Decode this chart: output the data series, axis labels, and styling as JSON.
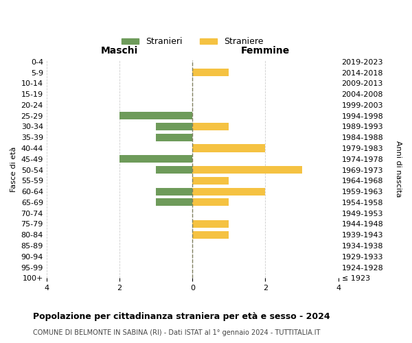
{
  "age_groups": [
    "100+",
    "95-99",
    "90-94",
    "85-89",
    "80-84",
    "75-79",
    "70-74",
    "65-69",
    "60-64",
    "55-59",
    "50-54",
    "45-49",
    "40-44",
    "35-39",
    "30-34",
    "25-29",
    "20-24",
    "15-19",
    "10-14",
    "5-9",
    "0-4"
  ],
  "birth_years": [
    "≤ 1923",
    "1924-1928",
    "1929-1933",
    "1934-1938",
    "1939-1943",
    "1944-1948",
    "1949-1953",
    "1954-1958",
    "1959-1963",
    "1964-1968",
    "1969-1973",
    "1974-1978",
    "1979-1983",
    "1984-1988",
    "1989-1993",
    "1994-1998",
    "1999-2003",
    "2004-2008",
    "2009-2013",
    "2014-2018",
    "2019-2023"
  ],
  "maschi": [
    0,
    0,
    0,
    0,
    0,
    0,
    0,
    1,
    1,
    0,
    1,
    2,
    0,
    1,
    1,
    2,
    0,
    0,
    0,
    0,
    0
  ],
  "femmine": [
    0,
    0,
    0,
    0,
    1,
    1,
    0,
    1,
    2,
    1,
    3,
    0,
    2,
    0,
    1,
    0,
    0,
    0,
    0,
    1,
    0
  ],
  "color_maschi": "#6e9b5a",
  "color_femmine": "#f5c242",
  "title": "Popolazione per cittadinanza straniera per età e sesso - 2024",
  "subtitle": "COMUNE DI BELMONTE IN SABINA (RI) - Dati ISTAT al 1° gennaio 2024 - TUTTITALIA.IT",
  "xlabel_maschi": "Maschi",
  "xlabel_femmine": "Femmine",
  "ylabel_left": "Fasce di età",
  "ylabel_right": "Anni di nascita",
  "legend_maschi": "Stranieri",
  "legend_femmine": "Straniere",
  "xlim": 4,
  "background_color": "#ffffff",
  "grid_color": "#cccccc"
}
